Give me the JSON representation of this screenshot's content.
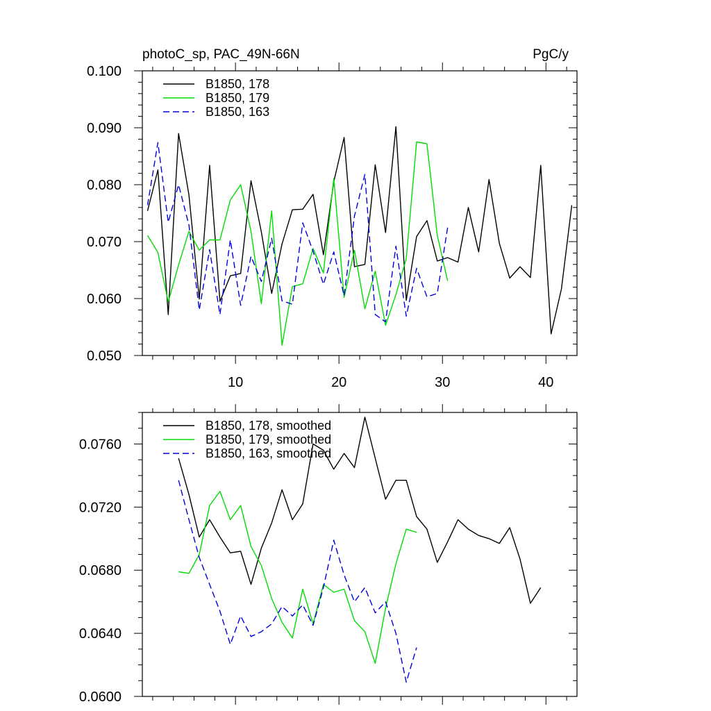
{
  "chart_data": [
    {
      "type": "line",
      "title": "photoC_sp, PAC_49N-66N",
      "units": "PgC/y",
      "xlabel": "",
      "ylabel": "",
      "xlim": [
        1,
        43
      ],
      "ylim": [
        0.05,
        0.1
      ],
      "x_ticks": [
        10,
        20,
        30,
        40
      ],
      "y_ticks": [
        0.05,
        0.06,
        0.07,
        0.08,
        0.09,
        0.1
      ],
      "y_tick_labels": [
        "0.050",
        "0.060",
        "0.070",
        "0.080",
        "0.090",
        "0.100"
      ],
      "legend_position": "top-left",
      "series": [
        {
          "name": "B1850, 178",
          "color": "#000000",
          "dash": "solid",
          "x": [
            1.5,
            2.5,
            3.5,
            4.5,
            5.5,
            6.5,
            7.5,
            8.5,
            9.5,
            10.5,
            11.5,
            12.5,
            13.5,
            14.5,
            15.5,
            16.5,
            17.5,
            18.5,
            19.5,
            20.5,
            21.5,
            22.5,
            23.5,
            24.5,
            25.5,
            26.5,
            27.5,
            28.5,
            29.5,
            30.5,
            31.5,
            32.5,
            33.5,
            34.5,
            35.5,
            36.5,
            37.5,
            38.5,
            39.5,
            40.5,
            41.5,
            42.5
          ],
          "values": [
            0.0754,
            0.0826,
            0.0572,
            0.089,
            0.0782,
            0.0599,
            0.0834,
            0.0595,
            0.064,
            0.0644,
            0.0807,
            0.0717,
            0.0609,
            0.0696,
            0.0756,
            0.0757,
            0.0783,
            0.0677,
            0.0805,
            0.0883,
            0.0656,
            0.066,
            0.0835,
            0.0716,
            0.0902,
            0.0597,
            0.0709,
            0.0737,
            0.0666,
            0.0672,
            0.0664,
            0.076,
            0.0682,
            0.0809,
            0.0697,
            0.0636,
            0.0656,
            0.0637,
            0.0834,
            0.0538,
            0.0617,
            0.0764
          ]
        },
        {
          "name": "B1850, 179",
          "color": "#00dd00",
          "dash": "solid",
          "x": [
            1.5,
            2.5,
            3.5,
            4.5,
            5.5,
            6.5,
            7.5,
            8.5,
            9.5,
            10.5,
            11.5,
            12.5,
            13.5,
            14.5,
            15.5,
            16.5,
            17.5,
            18.5,
            19.5,
            20.5,
            21.5,
            22.5,
            23.5,
            24.5,
            25.5,
            26.5,
            27.5,
            28.5,
            29.5,
            30.5
          ],
          "values": [
            0.0711,
            0.0681,
            0.0594,
            0.0659,
            0.0718,
            0.0685,
            0.0703,
            0.0703,
            0.0773,
            0.08,
            0.0718,
            0.0591,
            0.0754,
            0.0518,
            0.0621,
            0.0626,
            0.0688,
            0.0645,
            0.0811,
            0.0602,
            0.0685,
            0.0582,
            0.0648,
            0.0553,
            0.0607,
            0.067,
            0.0875,
            0.0872,
            0.0711,
            0.0631
          ]
        },
        {
          "name": "B1850, 163",
          "color": "#0000dd",
          "dash": "dashed",
          "x": [
            1.5,
            2.5,
            3.5,
            4.5,
            5.5,
            6.5,
            7.5,
            8.5,
            9.5,
            10.5,
            11.5,
            12.5,
            13.5,
            14.5,
            15.5,
            16.5,
            17.5,
            18.5,
            19.5,
            20.5,
            21.5,
            22.5,
            23.5,
            24.5,
            25.5,
            26.5,
            27.5,
            28.5,
            29.5,
            30.5
          ],
          "values": [
            0.0764,
            0.0874,
            0.0734,
            0.08,
            0.0729,
            0.058,
            0.0686,
            0.0572,
            0.0703,
            0.0588,
            0.0674,
            0.063,
            0.0706,
            0.0596,
            0.059,
            0.0733,
            0.0683,
            0.0625,
            0.0682,
            0.0605,
            0.0745,
            0.0818,
            0.0572,
            0.0559,
            0.0692,
            0.0569,
            0.0653,
            0.0603,
            0.0609,
            0.0725
          ]
        }
      ]
    },
    {
      "type": "line",
      "title": "",
      "xlabel": "",
      "ylabel": "",
      "xlim": [
        1,
        43
      ],
      "ylim": [
        0.06,
        0.078
      ],
      "x_ticks": [
        10,
        20,
        30,
        40
      ],
      "y_ticks": [
        0.06,
        0.064,
        0.068,
        0.072,
        0.076
      ],
      "y_tick_labels": [
        "0.0600",
        "0.0640",
        "0.0680",
        "0.0720",
        "0.0760"
      ],
      "legend_position": "top-left",
      "series": [
        {
          "name": "B1850, 178, smoothed",
          "color": "#000000",
          "dash": "solid",
          "x": [
            4.5,
            5.5,
            6.5,
            7.5,
            8.5,
            9.5,
            10.5,
            11.5,
            12.5,
            13.5,
            14.5,
            15.5,
            16.5,
            17.5,
            18.5,
            19.5,
            20.5,
            21.5,
            22.5,
            23.5,
            24.5,
            25.5,
            26.5,
            27.5,
            28.5,
            29.5,
            30.5,
            31.5,
            32.5,
            33.5,
            34.5,
            35.5,
            36.5,
            37.5,
            38.5,
            39.5
          ],
          "values": [
            0.0751,
            0.0728,
            0.0701,
            0.0712,
            0.0701,
            0.0691,
            0.0692,
            0.0671,
            0.0694,
            0.071,
            0.0731,
            0.0712,
            0.0722,
            0.076,
            0.0756,
            0.0744,
            0.0754,
            0.0745,
            0.0777,
            0.0751,
            0.0725,
            0.0737,
            0.0737,
            0.0714,
            0.0706,
            0.0685,
            0.0698,
            0.0712,
            0.0706,
            0.0702,
            0.07,
            0.0697,
            0.0707,
            0.0687,
            0.0659,
            0.0669
          ]
        },
        {
          "name": "B1850, 179, smoothed",
          "color": "#00dd00",
          "dash": "solid",
          "x": [
            4.5,
            5.5,
            6.5,
            7.5,
            8.5,
            9.5,
            10.5,
            11.5,
            12.5,
            13.5,
            14.5,
            15.5,
            16.5,
            17.5,
            18.5,
            19.5,
            20.5,
            21.5,
            22.5,
            23.5,
            24.5,
            25.5,
            26.5,
            27.5
          ],
          "values": [
            0.0679,
            0.0678,
            0.069,
            0.0721,
            0.073,
            0.0712,
            0.0721,
            0.0695,
            0.0683,
            0.0662,
            0.0647,
            0.0637,
            0.0668,
            0.0646,
            0.0671,
            0.0666,
            0.0668,
            0.0648,
            0.0641,
            0.0621,
            0.0656,
            0.0684,
            0.0706,
            0.0704
          ]
        },
        {
          "name": "B1850, 163, smoothed",
          "color": "#0000dd",
          "dash": "dashed",
          "x": [
            4.5,
            5.5,
            6.5,
            7.5,
            8.5,
            9.5,
            10.5,
            11.5,
            12.5,
            13.5,
            14.5,
            15.5,
            16.5,
            17.5,
            18.5,
            19.5,
            20.5,
            21.5,
            22.5,
            23.5,
            24.5,
            25.5,
            26.5,
            27.5
          ],
          "values": [
            0.0737,
            0.0712,
            0.0688,
            0.0671,
            0.0654,
            0.0633,
            0.0651,
            0.0638,
            0.0641,
            0.0646,
            0.0657,
            0.0651,
            0.0658,
            0.0645,
            0.0669,
            0.0699,
            0.0677,
            0.066,
            0.0669,
            0.0653,
            0.066,
            0.064,
            0.0609,
            0.0631
          ]
        }
      ]
    }
  ]
}
